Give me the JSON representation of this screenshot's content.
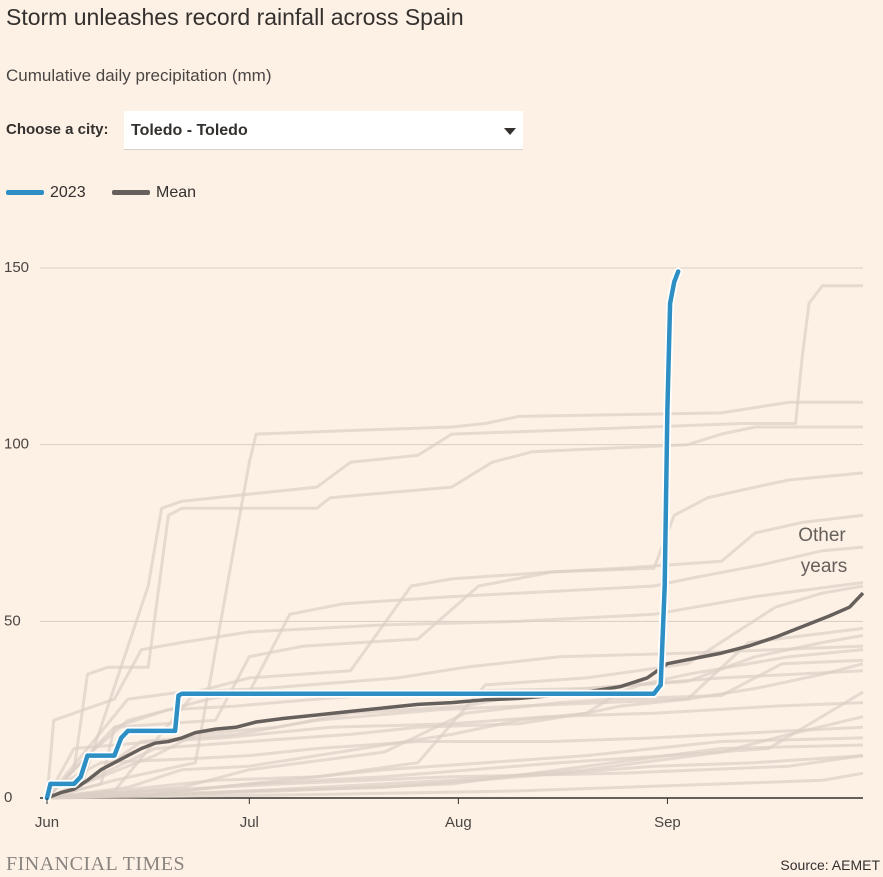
{
  "header": {
    "title": "Storm unleashes record rainfall across Spain",
    "subtitle": "Cumulative daily precipitation (mm)"
  },
  "selector": {
    "label": "Choose a city:",
    "value": "Toledo - Toledo"
  },
  "legend": [
    {
      "label": "2023",
      "color": "#2e8fc4"
    },
    {
      "label": "Mean",
      "color": "#66605c"
    }
  ],
  "annotation": {
    "line1": "Other",
    "line2": "years"
  },
  "footer": {
    "brand": "FINANCIAL TIMES",
    "source": "Source: AEMET"
  },
  "chart_data": {
    "type": "line",
    "x_unit": "day of season (0 = 1 Jun)",
    "xlim": [
      0,
      121
    ],
    "ylim": [
      0,
      150
    ],
    "y_ticks": [
      0,
      50,
      100,
      150
    ],
    "x_ticks": [
      {
        "label": "Jun",
        "day": 0
      },
      {
        "label": "Jul",
        "day": 30
      },
      {
        "label": "Aug",
        "day": 61
      },
      {
        "label": "Sep",
        "day": 92
      }
    ],
    "grid": true,
    "legend_position": "top-left",
    "colors": {
      "y2023": "#2e8fc4",
      "mean": "#66605c",
      "other": "#dcd0c6",
      "grid": "#d9cec4"
    },
    "series": [
      {
        "name": "2023",
        "points": [
          [
            0,
            0
          ],
          [
            0.5,
            4
          ],
          [
            4,
            4
          ],
          [
            5,
            6
          ],
          [
            6,
            12
          ],
          [
            10,
            12
          ],
          [
            11,
            17
          ],
          [
            12,
            19
          ],
          [
            19,
            19
          ],
          [
            19.5,
            29
          ],
          [
            20,
            29.5
          ],
          [
            90,
            29.5
          ],
          [
            91,
            32
          ],
          [
            91.6,
            60
          ],
          [
            92,
            110
          ],
          [
            92.4,
            140
          ],
          [
            93,
            146
          ],
          [
            93.6,
            149
          ]
        ]
      },
      {
        "name": "Mean",
        "points": [
          [
            0,
            0
          ],
          [
            2,
            1.5
          ],
          [
            4,
            2.5
          ],
          [
            6,
            5
          ],
          [
            8,
            8
          ],
          [
            10,
            10
          ],
          [
            12,
            12
          ],
          [
            14,
            14
          ],
          [
            16,
            15.5
          ],
          [
            18,
            16
          ],
          [
            20,
            17
          ],
          [
            22,
            18.5
          ],
          [
            25,
            19.5
          ],
          [
            28,
            20
          ],
          [
            31,
            21.5
          ],
          [
            35,
            22.5
          ],
          [
            40,
            23.5
          ],
          [
            45,
            24.5
          ],
          [
            50,
            25.5
          ],
          [
            55,
            26.5
          ],
          [
            60,
            27
          ],
          [
            65,
            27.8
          ],
          [
            70,
            28.2
          ],
          [
            75,
            29
          ],
          [
            80,
            30
          ],
          [
            85,
            31.5
          ],
          [
            89,
            34
          ],
          [
            92,
            38
          ],
          [
            96,
            39.5
          ],
          [
            100,
            41
          ],
          [
            104,
            43
          ],
          [
            108,
            45.5
          ],
          [
            112,
            48.5
          ],
          [
            116,
            51.5
          ],
          [
            119,
            54
          ],
          [
            121,
            58
          ]
        ]
      }
    ],
    "other_years": [
      [
        [
          0,
          0
        ],
        [
          4,
          8
        ],
        [
          6,
          35
        ],
        [
          9,
          37
        ],
        [
          15,
          37
        ],
        [
          18,
          80
        ],
        [
          20,
          82
        ],
        [
          40,
          82
        ],
        [
          42,
          85
        ],
        [
          60,
          88
        ],
        [
          66,
          95
        ],
        [
          72,
          98
        ],
        [
          95,
          100
        ],
        [
          100,
          103
        ],
        [
          105,
          105
        ],
        [
          121,
          105
        ]
      ],
      [
        [
          0,
          0
        ],
        [
          10,
          5
        ],
        [
          22,
          10
        ],
        [
          30,
          95
        ],
        [
          31,
          103
        ],
        [
          45,
          104
        ],
        [
          60,
          105
        ],
        [
          65,
          106
        ],
        [
          70,
          108
        ],
        [
          100,
          109
        ],
        [
          110,
          112
        ],
        [
          121,
          112
        ]
      ],
      [
        [
          0,
          0
        ],
        [
          5,
          3
        ],
        [
          15,
          60
        ],
        [
          17,
          82
        ],
        [
          20,
          84
        ],
        [
          30,
          86
        ],
        [
          40,
          88
        ],
        [
          45,
          95
        ],
        [
          55,
          97
        ],
        [
          60,
          103
        ],
        [
          75,
          104
        ],
        [
          103,
          106
        ],
        [
          111,
          106
        ],
        [
          112,
          125
        ],
        [
          113,
          140
        ],
        [
          115,
          145
        ],
        [
          121,
          145
        ]
      ],
      [
        [
          0,
          0
        ],
        [
          8,
          4
        ],
        [
          10,
          20
        ],
        [
          25,
          22
        ],
        [
          30,
          40
        ],
        [
          38,
          43
        ],
        [
          55,
          45
        ],
        [
          64,
          60
        ],
        [
          75,
          64
        ],
        [
          90,
          65
        ],
        [
          93,
          80
        ],
        [
          98,
          85
        ],
        [
          105,
          88
        ],
        [
          110,
          90
        ],
        [
          121,
          92
        ]
      ],
      [
        [
          0,
          0
        ],
        [
          10,
          2
        ],
        [
          22,
          30
        ],
        [
          30,
          34
        ],
        [
          45,
          36
        ],
        [
          54,
          60
        ],
        [
          60,
          62
        ],
        [
          75,
          64
        ],
        [
          85,
          65
        ],
        [
          100,
          67
        ],
        [
          105,
          75
        ],
        [
          112,
          78
        ],
        [
          121,
          80
        ]
      ],
      [
        [
          0,
          0
        ],
        [
          6,
          12
        ],
        [
          12,
          22
        ],
        [
          24,
          28
        ],
        [
          30,
          30
        ],
        [
          36,
          52
        ],
        [
          44,
          55
        ],
        [
          60,
          57
        ],
        [
          70,
          58
        ],
        [
          90,
          60
        ],
        [
          95,
          62
        ],
        [
          106,
          66
        ],
        [
          115,
          70
        ],
        [
          121,
          71
        ]
      ],
      [
        [
          0,
          0
        ],
        [
          12,
          3
        ],
        [
          20,
          8
        ],
        [
          30,
          9
        ],
        [
          40,
          12
        ],
        [
          50,
          15
        ],
        [
          60,
          18
        ],
        [
          70,
          22
        ],
        [
          80,
          24
        ],
        [
          85,
          26
        ],
        [
          95,
          28
        ],
        [
          105,
          31
        ],
        [
          115,
          35
        ],
        [
          121,
          38
        ]
      ],
      [
        [
          0,
          0
        ],
        [
          3,
          2
        ],
        [
          16,
          14
        ],
        [
          30,
          16
        ],
        [
          45,
          18
        ],
        [
          55,
          20
        ],
        [
          70,
          21
        ],
        [
          80,
          24
        ],
        [
          85,
          30
        ],
        [
          88,
          32
        ],
        [
          95,
          35
        ],
        [
          110,
          40
        ],
        [
          121,
          42
        ]
      ],
      [
        [
          0,
          0
        ],
        [
          20,
          1
        ],
        [
          40,
          3
        ],
        [
          60,
          5
        ],
        [
          80,
          8
        ],
        [
          100,
          13
        ],
        [
          110,
          18
        ],
        [
          121,
          23
        ]
      ],
      [
        [
          0,
          0
        ],
        [
          30,
          2
        ],
        [
          50,
          3
        ],
        [
          70,
          6
        ],
        [
          90,
          9
        ],
        [
          105,
          10
        ],
        [
          121,
          12
        ]
      ],
      [
        [
          0,
          0
        ],
        [
          15,
          1
        ],
        [
          35,
          5
        ],
        [
          50,
          8
        ],
        [
          65,
          10
        ],
        [
          80,
          12
        ],
        [
          100,
          16
        ],
        [
          121,
          17
        ]
      ],
      [
        [
          0,
          0
        ],
        [
          1,
          3
        ],
        [
          8,
          10
        ],
        [
          20,
          11
        ],
        [
          30,
          12
        ],
        [
          40,
          14
        ],
        [
          55,
          16
        ],
        [
          75,
          16
        ],
        [
          90,
          17
        ],
        [
          110,
          19
        ],
        [
          121,
          20
        ]
      ],
      [
        [
          0,
          0
        ],
        [
          5,
          10
        ],
        [
          10,
          20
        ],
        [
          18,
          25
        ],
        [
          28,
          26
        ],
        [
          40,
          28
        ],
        [
          55,
          30
        ],
        [
          80,
          31
        ],
        [
          95,
          33
        ],
        [
          105,
          40
        ],
        [
          115,
          44
        ],
        [
          121,
          46
        ]
      ],
      [
        [
          0,
          0
        ],
        [
          1,
          22
        ],
        [
          4,
          24
        ],
        [
          10,
          28
        ],
        [
          14,
          42
        ],
        [
          20,
          44
        ],
        [
          30,
          47
        ],
        [
          50,
          49
        ],
        [
          70,
          50
        ],
        [
          90,
          52
        ],
        [
          105,
          57
        ],
        [
          121,
          61
        ]
      ],
      [
        [
          0,
          0
        ],
        [
          25,
          5
        ],
        [
          40,
          6
        ],
        [
          55,
          10
        ],
        [
          65,
          32
        ],
        [
          80,
          34
        ],
        [
          95,
          38
        ],
        [
          108,
          54
        ],
        [
          115,
          58
        ],
        [
          121,
          60
        ]
      ],
      [
        [
          0,
          0
        ],
        [
          35,
          2
        ],
        [
          60,
          4
        ],
        [
          72,
          7
        ],
        [
          88,
          11
        ],
        [
          100,
          14
        ],
        [
          121,
          15
        ]
      ],
      [
        [
          0,
          0
        ],
        [
          8,
          6
        ],
        [
          16,
          12
        ],
        [
          22,
          18
        ],
        [
          34,
          20
        ],
        [
          45,
          24
        ],
        [
          62,
          26
        ],
        [
          70,
          29
        ],
        [
          80,
          31
        ],
        [
          100,
          34
        ],
        [
          121,
          36
        ]
      ],
      [
        [
          0,
          0
        ],
        [
          20,
          3
        ],
        [
          30,
          8
        ],
        [
          50,
          13
        ],
        [
          62,
          24
        ],
        [
          76,
          27
        ],
        [
          84,
          28
        ],
        [
          100,
          29
        ],
        [
          109,
          38
        ],
        [
          121,
          39
        ]
      ],
      [
        [
          0,
          0
        ],
        [
          10,
          1
        ],
        [
          20,
          2
        ],
        [
          30,
          4
        ],
        [
          50,
          6
        ],
        [
          76,
          10
        ],
        [
          92,
          12
        ],
        [
          107,
          14
        ],
        [
          121,
          30
        ]
      ],
      [
        [
          0,
          0
        ],
        [
          15,
          2
        ],
        [
          35,
          4
        ],
        [
          60,
          6
        ],
        [
          85,
          7
        ],
        [
          110,
          9
        ],
        [
          121,
          12
        ]
      ],
      [
        [
          0,
          0
        ],
        [
          40,
          1
        ],
        [
          70,
          2
        ],
        [
          100,
          4
        ],
        [
          115,
          5
        ],
        [
          121,
          7
        ]
      ],
      [
        [
          0,
          0
        ],
        [
          6,
          5
        ],
        [
          14,
          16
        ],
        [
          28,
          18
        ],
        [
          40,
          22
        ],
        [
          58,
          25
        ],
        [
          70,
          26
        ],
        [
          95,
          28
        ],
        [
          104,
          44
        ],
        [
          121,
          48
        ]
      ],
      [
        [
          0,
          0
        ],
        [
          12,
          28
        ],
        [
          20,
          30
        ],
        [
          32,
          31
        ],
        [
          52,
          34
        ],
        [
          62,
          37
        ],
        [
          76,
          40
        ],
        [
          95,
          41
        ],
        [
          121,
          43
        ]
      ],
      [
        [
          0,
          0
        ],
        [
          4,
          14
        ],
        [
          16,
          16
        ],
        [
          26,
          17
        ],
        [
          42,
          20
        ],
        [
          60,
          21
        ],
        [
          74,
          23
        ],
        [
          90,
          24
        ],
        [
          108,
          26
        ],
        [
          121,
          27
        ]
      ]
    ]
  }
}
